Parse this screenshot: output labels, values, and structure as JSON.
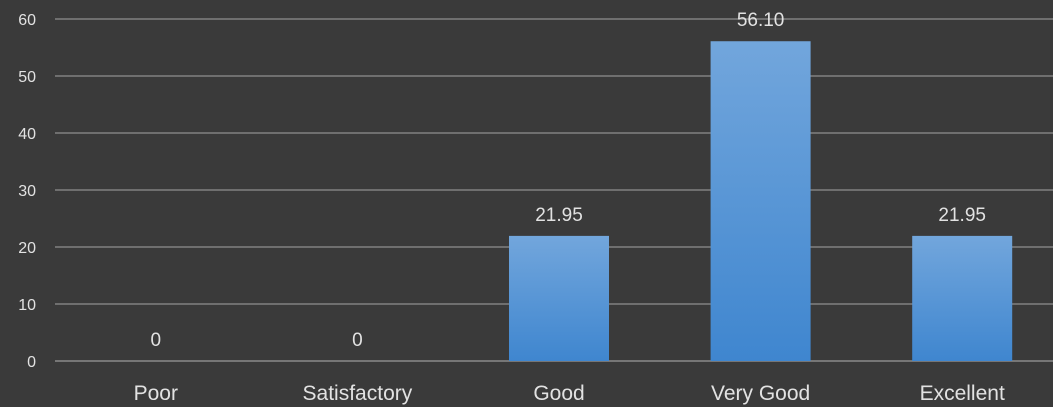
{
  "chart_data": {
    "type": "bar",
    "title": "",
    "xlabel": "",
    "ylabel": "",
    "categories": [
      "Poor",
      "Satisfactory",
      "Good",
      "Very Good",
      "Excellent"
    ],
    "values": [
      0,
      0,
      21.95,
      56.1,
      21.95
    ],
    "data_labels": [
      "0",
      "0",
      "21.95",
      "56.10",
      "21.95"
    ],
    "ylim": [
      0,
      60
    ],
    "yticks": [
      0,
      10,
      20,
      30,
      40,
      50,
      60
    ],
    "grid": true,
    "legend": "none",
    "colors": {
      "background": "#3a3a3a",
      "bar_top": "#72a6dc",
      "bar_bottom": "#3f86cf",
      "text": "#e2e2e2",
      "grid": "#8f8f8f"
    }
  }
}
